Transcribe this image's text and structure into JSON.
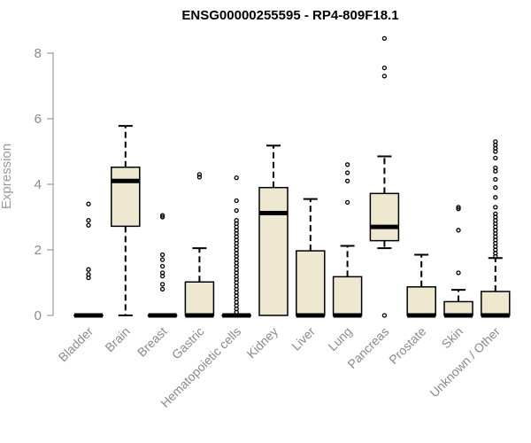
{
  "chart_data": {
    "type": "boxplot",
    "title": "ENSG00000255595 - RP4-809F18.1",
    "xlabel": "",
    "ylabel": "Expression",
    "ylim": [
      0,
      8.4
    ],
    "yticks": [
      0,
      2,
      4,
      6,
      8
    ],
    "colors": {
      "box_fill": "#efe8d1",
      "box_stroke": "#000000",
      "axis": "#8a8a8a"
    },
    "categories": [
      "Bladder",
      "Brain",
      "Breast",
      "Gastric",
      "Hematopoietic cells",
      "Kidney",
      "Liver",
      "Lung",
      "Pancreas",
      "Prostate",
      "Skin",
      "Unknown / Other"
    ],
    "boxes": [
      {
        "category": "Bladder",
        "whisker_low": 0,
        "q1": 0,
        "median": 0,
        "q3": 0,
        "whisker_high": 0,
        "outliers": [
          1.15,
          1.25,
          1.4,
          2.75,
          2.9,
          3.4
        ]
      },
      {
        "category": "Brain",
        "whisker_low": 0,
        "q1": 2.72,
        "median": 4.1,
        "q3": 4.52,
        "whisker_high": 5.78,
        "outliers": []
      },
      {
        "category": "Breast",
        "whisker_low": 0,
        "q1": 0,
        "median": 0,
        "q3": 0,
        "whisker_high": 0,
        "outliers": [
          0.8,
          0.95,
          1.2,
          1.3,
          1.5,
          1.7,
          1.85,
          3.0,
          3.05
        ]
      },
      {
        "category": "Gastric",
        "whisker_low": 0,
        "q1": 0,
        "median": 0,
        "q3": 1.02,
        "whisker_high": 2.05,
        "outliers": [
          4.22,
          4.3
        ]
      },
      {
        "category": "Hematopoietic cells",
        "whisker_low": 0,
        "q1": 0,
        "median": 0,
        "q3": 0,
        "whisker_high": 0,
        "outliers": [
          0.1,
          0.2,
          0.3,
          0.4,
          0.5,
          0.6,
          0.7,
          0.8,
          0.9,
          1.0,
          1.1,
          1.2,
          1.3,
          1.4,
          1.5,
          1.6,
          1.7,
          1.8,
          1.9,
          2.0,
          2.1,
          2.2,
          2.3,
          2.4,
          2.5,
          2.6,
          2.7,
          2.8,
          2.9,
          3.2,
          3.5,
          4.2
        ]
      },
      {
        "category": "Kidney",
        "whisker_low": 0,
        "q1": 0,
        "median": 3.12,
        "q3": 3.9,
        "whisker_high": 5.18,
        "outliers": []
      },
      {
        "category": "Liver",
        "whisker_low": 0,
        "q1": 0,
        "median": 0,
        "q3": 1.97,
        "whisker_high": 3.55,
        "outliers": []
      },
      {
        "category": "Lung",
        "whisker_low": 0,
        "q1": 0,
        "median": 0,
        "q3": 1.18,
        "whisker_high": 2.12,
        "outliers": [
          3.45,
          4.1,
          4.35,
          4.6
        ]
      },
      {
        "category": "Pancreas",
        "whisker_low": 2.05,
        "q1": 2.28,
        "median": 2.7,
        "q3": 3.72,
        "whisker_high": 4.85,
        "outliers": [
          0,
          7.3,
          7.55,
          8.45
        ]
      },
      {
        "category": "Prostate",
        "whisker_low": 0,
        "q1": 0,
        "median": 0,
        "q3": 0.87,
        "whisker_high": 1.85,
        "outliers": []
      },
      {
        "category": "Skin",
        "whisker_low": 0,
        "q1": 0,
        "median": 0,
        "q3": 0.42,
        "whisker_high": 0.78,
        "outliers": [
          1.3,
          2.6,
          3.25,
          3.3
        ]
      },
      {
        "category": "Unknown / Other",
        "whisker_low": 0,
        "q1": 0,
        "median": 0,
        "q3": 0.73,
        "whisker_high": 1.75,
        "outliers": [
          1.8,
          1.9,
          2.0,
          2.1,
          2.2,
          2.3,
          2.4,
          2.5,
          2.6,
          2.7,
          2.8,
          2.9,
          3.0,
          3.1,
          3.3,
          3.6,
          3.9,
          4.15,
          4.4,
          4.5,
          4.8,
          5.0,
          5.1,
          5.2,
          5.3
        ]
      }
    ]
  }
}
